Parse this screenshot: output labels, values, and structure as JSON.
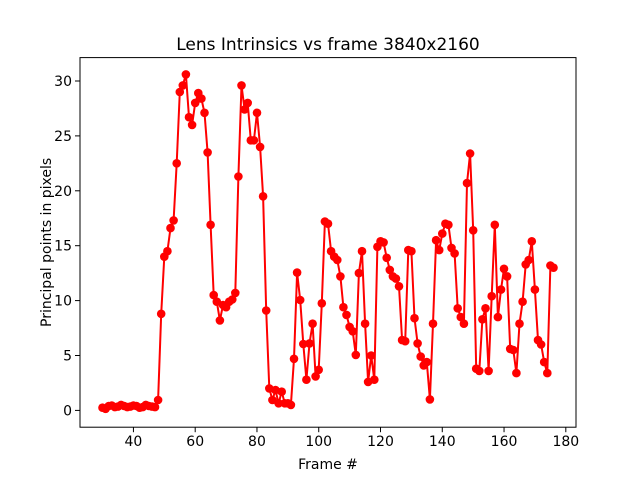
{
  "figure": {
    "background": "#ffffff"
  },
  "chart_data": {
    "type": "line",
    "title": "Lens Intrinsics vs frame 3840x2160",
    "xlabel": "Frame #",
    "ylabel": "Principal points in pixels",
    "grid": false,
    "xlim": [
      22.7,
      183.3
    ],
    "ylim": [
      -1.53,
      32.13
    ],
    "xticks": [
      40,
      60,
      80,
      100,
      120,
      140,
      160,
      180
    ],
    "yticks": [
      0,
      5,
      10,
      15,
      20,
      25,
      30
    ],
    "series": [
      {
        "name": "principal-points",
        "color": "#ff0000",
        "marker": "circle",
        "x": [
          30,
          31,
          32,
          33,
          34,
          35,
          36,
          37,
          38,
          39,
          40,
          41,
          42,
          43,
          44,
          45,
          46,
          47,
          48,
          49,
          50,
          51,
          52,
          53,
          54,
          55,
          56,
          57,
          58,
          59,
          60,
          61,
          62,
          63,
          64,
          65,
          66,
          67,
          68,
          69,
          70,
          71,
          72,
          73,
          74,
          75,
          76,
          77,
          78,
          79,
          80,
          81,
          82,
          83,
          84,
          85,
          86,
          87,
          88,
          89,
          90,
          91,
          92,
          93,
          94,
          95,
          96,
          97,
          98,
          99,
          100,
          101,
          102,
          103,
          104,
          105,
          106,
          107,
          108,
          109,
          110,
          111,
          112,
          113,
          114,
          115,
          116,
          117,
          118,
          119,
          120,
          121,
          122,
          123,
          124,
          125,
          126,
          127,
          128,
          129,
          130,
          131,
          132,
          133,
          134,
          135,
          136,
          137,
          138,
          139,
          140,
          141,
          142,
          143,
          144,
          145,
          146,
          147,
          148,
          149,
          150,
          151,
          152,
          153,
          154,
          155,
          156,
          157,
          158,
          159,
          160,
          161,
          162,
          163,
          164,
          165,
          166,
          167,
          168,
          169,
          170,
          171,
          172,
          173,
          174,
          175,
          176
        ],
        "y": [
          0.25,
          0.15,
          0.4,
          0.45,
          0.3,
          0.35,
          0.5,
          0.4,
          0.3,
          0.35,
          0.45,
          0.4,
          0.25,
          0.3,
          0.5,
          0.4,
          0.35,
          0.3,
          0.95,
          8.8,
          14.0,
          14.5,
          16.6,
          17.3,
          22.5,
          29.0,
          29.6,
          30.6,
          26.7,
          26.0,
          28.0,
          28.9,
          28.4,
          27.1,
          23.5,
          16.9,
          10.5,
          9.9,
          8.2,
          9.6,
          9.4,
          9.9,
          10.1,
          10.7,
          21.3,
          29.6,
          27.4,
          28.0,
          24.6,
          24.6,
          27.1,
          24.0,
          19.5,
          9.1,
          2.0,
          0.95,
          1.85,
          0.65,
          1.7,
          0.65,
          0.65,
          0.5,
          4.7,
          12.55,
          10.05,
          6.05,
          2.8,
          6.1,
          7.9,
          3.1,
          3.7,
          9.75,
          17.2,
          17.0,
          14.5,
          14.0,
          13.7,
          12.2,
          9.4,
          8.7,
          7.6,
          7.2,
          5.05,
          12.5,
          14.5,
          7.9,
          2.6,
          5.0,
          2.8,
          14.9,
          15.4,
          15.3,
          13.9,
          12.8,
          12.2,
          12.0,
          11.3,
          6.4,
          6.3,
          14.6,
          14.5,
          8.4,
          6.1,
          4.9,
          4.1,
          4.4,
          1.0,
          7.9,
          15.5,
          14.6,
          16.1,
          17.0,
          16.9,
          14.8,
          14.3,
          9.3,
          8.5,
          7.9,
          20.7,
          23.4,
          16.4,
          3.8,
          3.6,
          8.3,
          9.3,
          3.6,
          10.4,
          16.9,
          8.5,
          11.0,
          12.9,
          12.2,
          5.6,
          5.5,
          3.4,
          7.9,
          9.9,
          13.3,
          13.7,
          15.4,
          11.0,
          6.4,
          6.0,
          4.4,
          3.4,
          13.2,
          13.0
        ]
      }
    ]
  }
}
